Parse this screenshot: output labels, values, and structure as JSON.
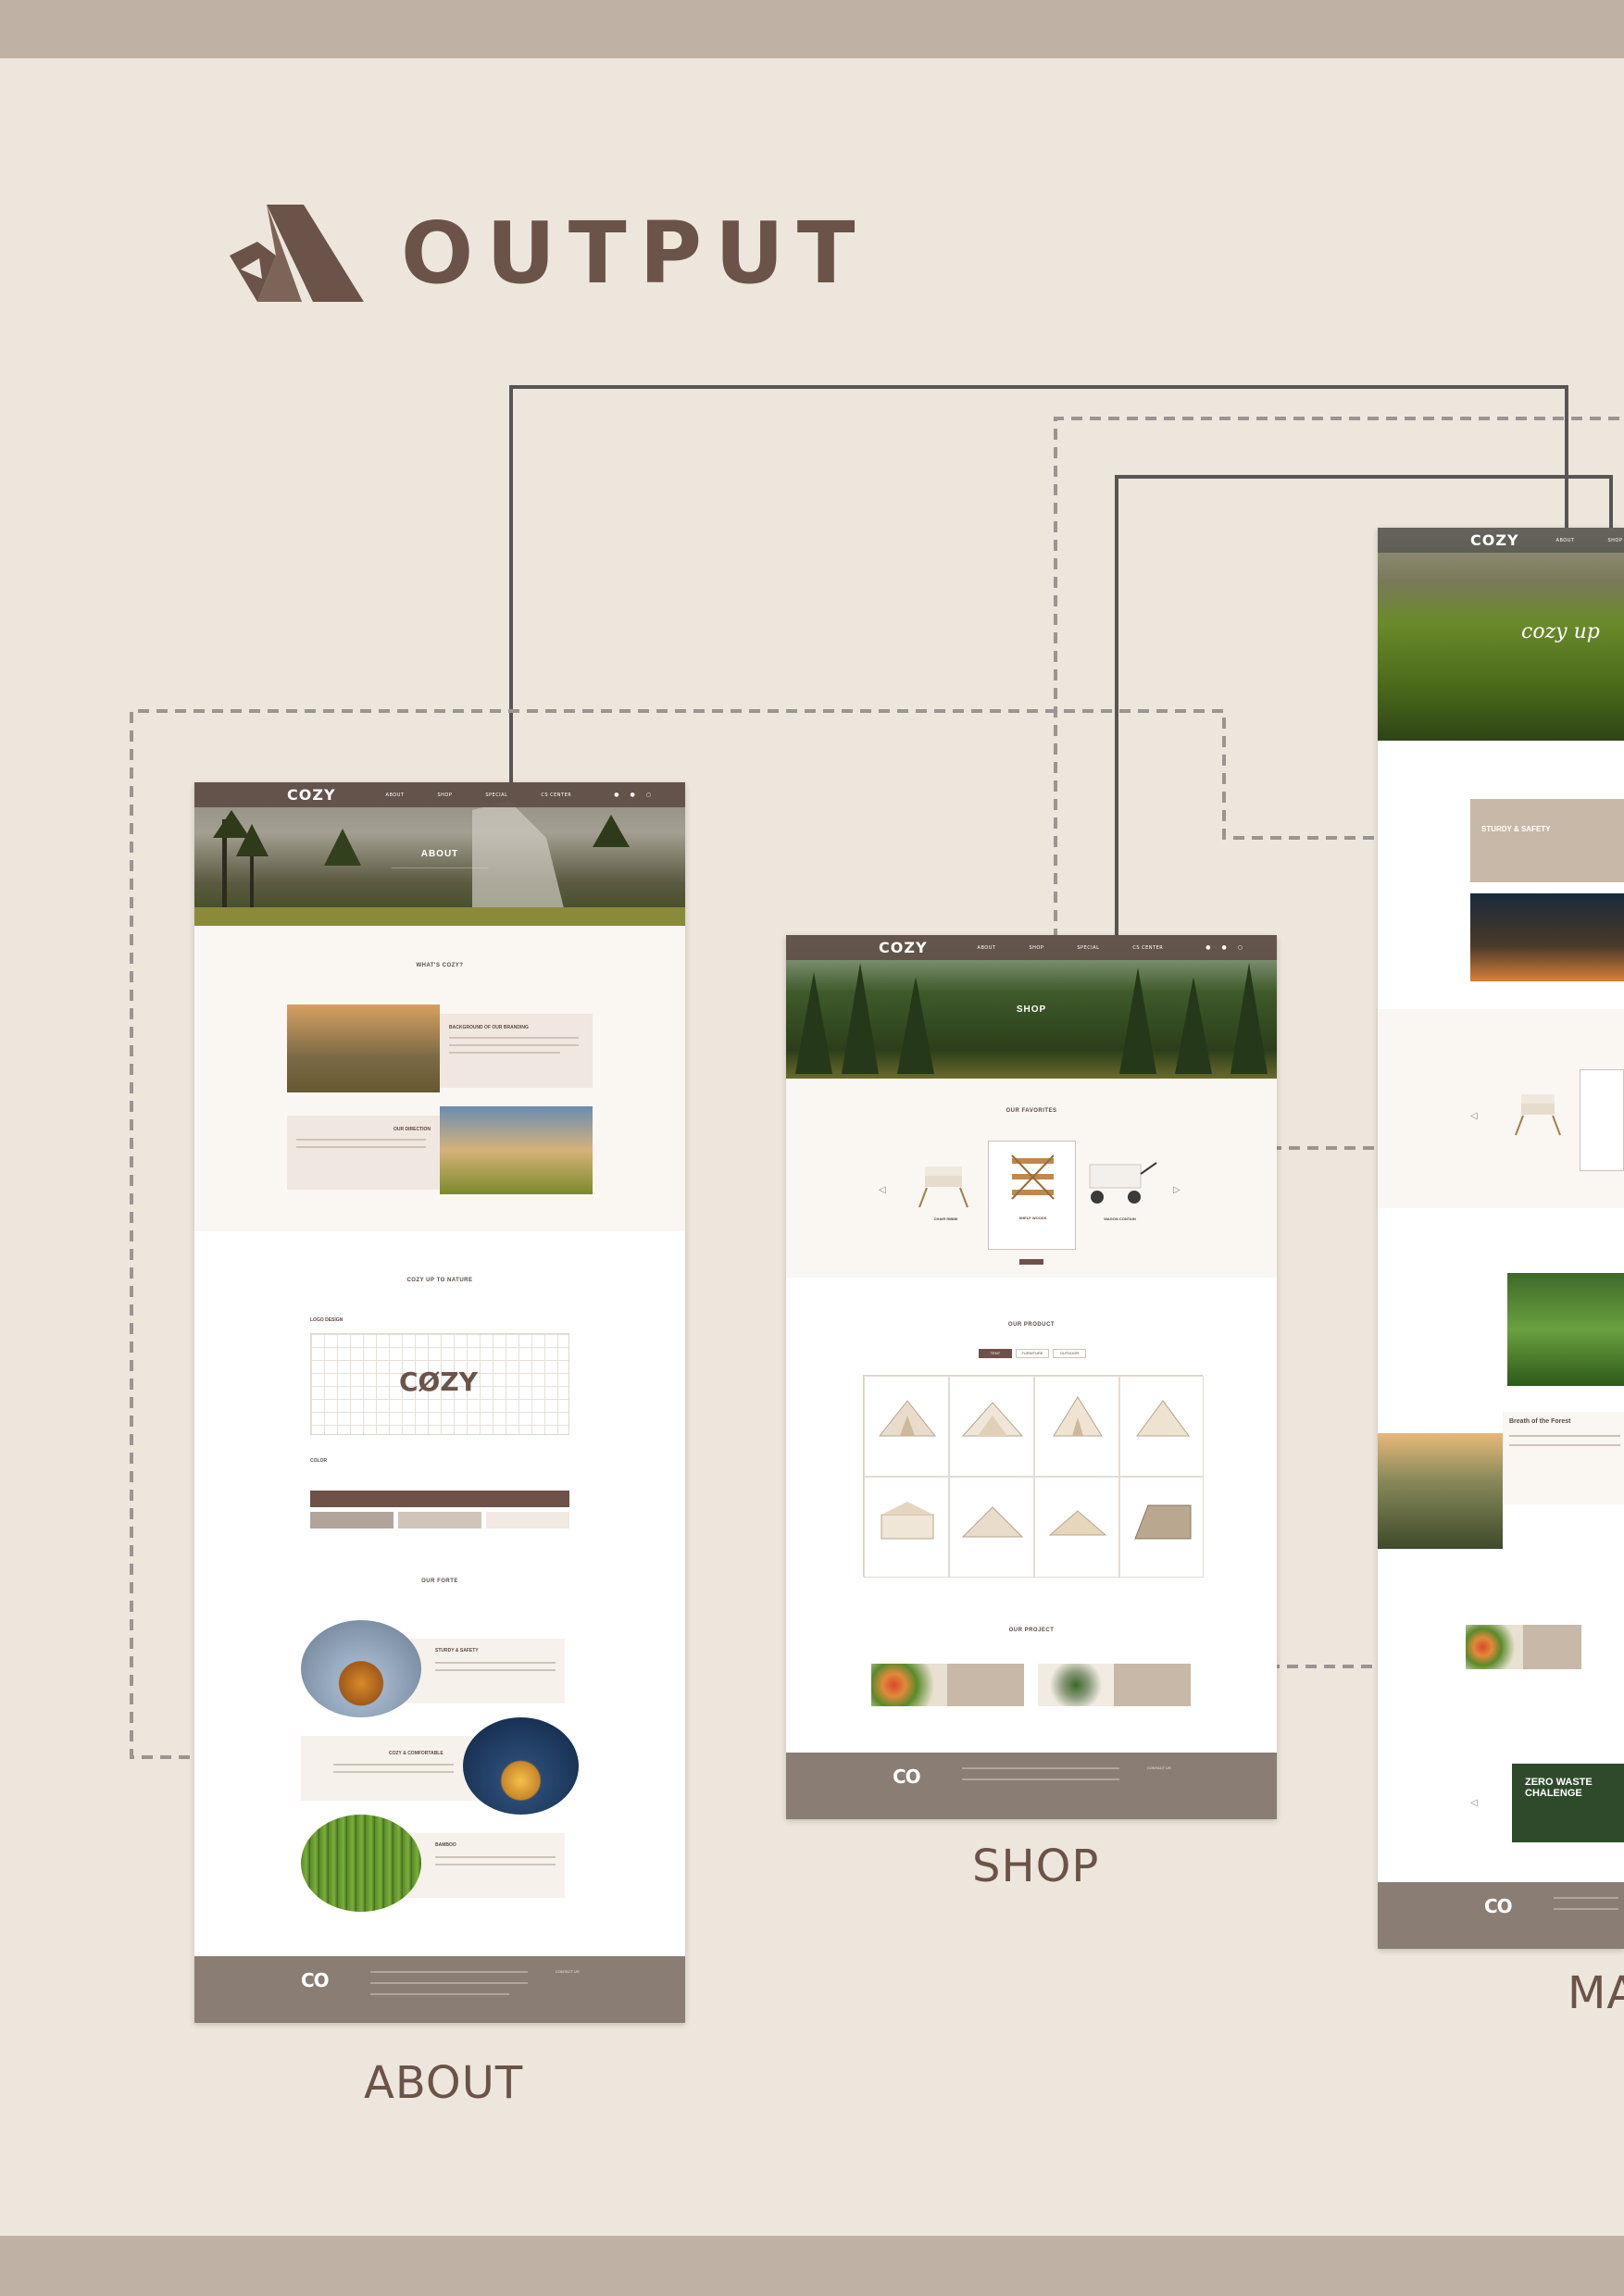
{
  "header": {
    "title": "OUTPUT",
    "logo_icon": "tent-icon"
  },
  "colors": {
    "background": "#ede6dc",
    "band": "#bfb1a3",
    "accent": "#6b5349",
    "footer": "#8a7d73"
  },
  "nav": {
    "brand": "COZY",
    "links": [
      "ABOUT",
      "SHOP",
      "SPECIAL",
      "CS CENTER"
    ]
  },
  "about": {
    "label": "ABOUT",
    "hero_title": "ABOUT",
    "sections": {
      "whats_cozy": "WHAT'S COZY?",
      "background": "BACKGROUND OF OUR BRANDING",
      "direction": "OUR DIRECTION",
      "cozy_up": "COZY UP TO NATURE",
      "logo_design": "LOGO DESIGN",
      "color": "COLOR",
      "our_forte": "OUR FORTE",
      "sturdy": "STURDY & SAFETY",
      "comfortable": "COZY & COMFORTABLE",
      "bamboo": "BAMBOO"
    }
  },
  "shop": {
    "label": "SHOP",
    "hero_title": "SHOP",
    "sections": {
      "favorites": "OUR FAVORITES",
      "product": "OUR PRODUCT",
      "project": "OUR PROJECT"
    },
    "tabs": [
      "TENT",
      "FURNITURE",
      "OUTDOOR"
    ],
    "favorite_items": [
      "CHAIR RIBIBI",
      "SHELF WOODS",
      "WAGON CONTAIN"
    ]
  },
  "main": {
    "label": "MA",
    "hero_title": "cozy up",
    "sections": {
      "sturdy": "STURDY & SAFETY",
      "forest": "Breath of the Forest",
      "zero_waste": "ZERO WASTE CHALENGE"
    }
  },
  "footer": {
    "brand": "CO",
    "contact": "CONTACT US"
  }
}
